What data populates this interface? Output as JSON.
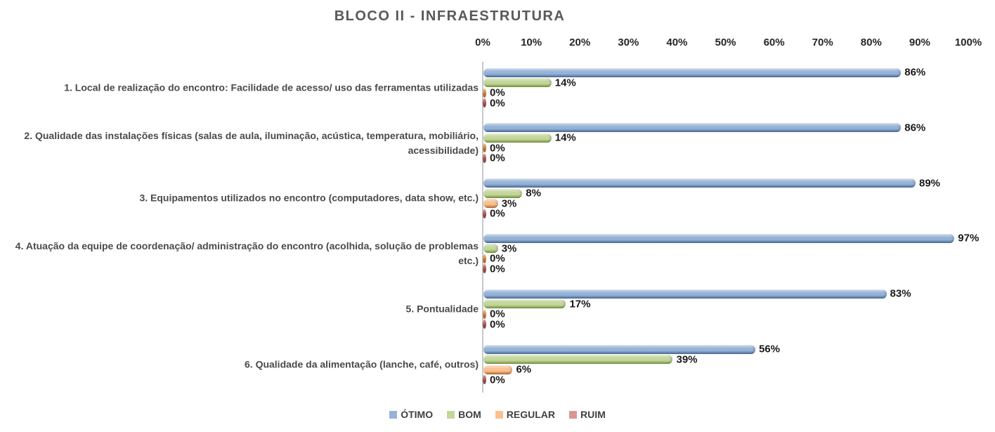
{
  "chart_data": {
    "type": "bar",
    "orientation": "horizontal",
    "title": "BLOCO II - INFRAESTRUTURA",
    "categories": [
      "1. Local de realização do encontro: Facilidade de acesso/ uso das ferramentas utilizadas",
      "2. Qualidade das instalações físicas (salas de aula, iluminação, acústica, temperatura, mobiliário, acessibilidade)",
      "3. Equipamentos utilizados no encontro (computadores, data show, etc.)",
      "4. Atuação da equipe de coordenação/ administração do encontro (acolhida, solução de problemas etc.)",
      "5. Pontualidade",
      "6. Qualidade da alimentação (lanche, café, outros)"
    ],
    "series": [
      {
        "name": "ÓTIMO",
        "fill": "#95B3D7",
        "fill_light": "#CEDCEE",
        "border": "#4A6A96",
        "values": [
          86,
          86,
          89,
          97,
          83,
          56
        ]
      },
      {
        "name": "BOM",
        "fill": "#C3D69B",
        "fill_light": "#E0EAC8",
        "border": "#76923C",
        "values": [
          14,
          14,
          8,
          3,
          17,
          39
        ]
      },
      {
        "name": "REGULAR",
        "fill": "#FAC090",
        "fill_light": "#FDDFC4",
        "border": "#B26B34",
        "values": [
          0,
          0,
          3,
          0,
          0,
          6
        ]
      },
      {
        "name": "RUIM",
        "fill": "#D99694",
        "fill_light": "#ECC5C4",
        "border": "#8E4341",
        "values": [
          0,
          0,
          0,
          0,
          0,
          0
        ]
      }
    ],
    "value_axis": {
      "min": 0,
      "max": 100,
      "step": 10,
      "position": "top",
      "tick_labels": [
        "0%",
        "10%",
        "20%",
        "30%",
        "40%",
        "50%",
        "60%",
        "70%",
        "80%",
        "90%",
        "100%"
      ]
    },
    "data_labels": {
      "visible": true,
      "format": "{value}%"
    },
    "legend": {
      "position": "bottom",
      "entries": [
        "ÓTIMO",
        "BOM",
        "REGULAR",
        "RUIM"
      ]
    },
    "grid": false,
    "colors": {
      "title_text": "#595959",
      "category_text": "#4A4A4A",
      "tick_text": "#262626",
      "data_label_text": "#1A1A1A",
      "legend_text": "#404040",
      "axis_line": "#C3C8CE"
    }
  }
}
